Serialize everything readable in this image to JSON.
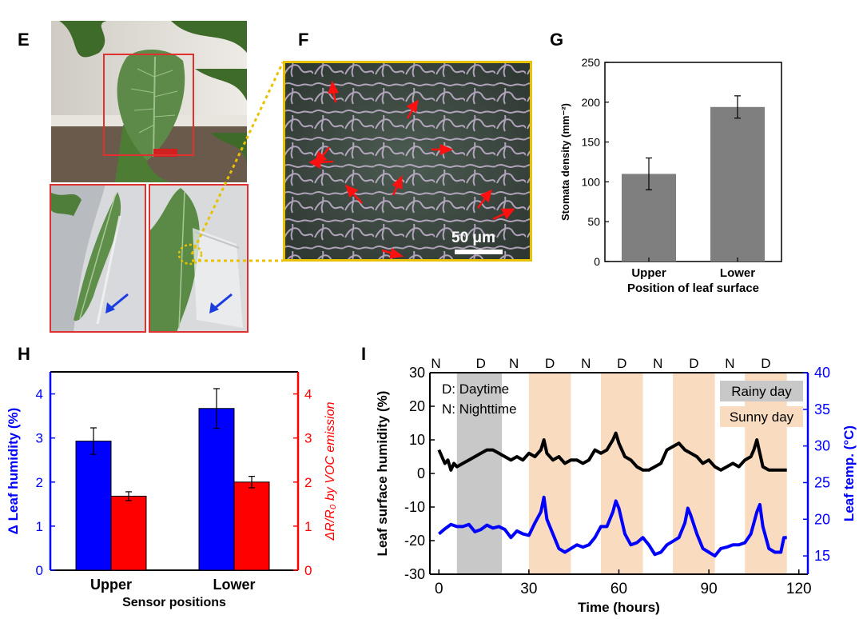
{
  "panels": {
    "E": "E",
    "F": "F",
    "G": "G",
    "H": "H",
    "I": "I"
  },
  "colors": {
    "gray_bar": "#7f7f7f",
    "blue": "#0000ff",
    "red": "#ff0000",
    "black": "#000000",
    "rainy": "#c8c8c8",
    "sunny": "#f9dcc0",
    "frame_red": "#e03030",
    "frame_yellow": "#e8c200",
    "arrow_red": "#ff1010",
    "arrow_blue": "#1b3de0"
  },
  "micrograph": {
    "scale_bar_label": "50 μm"
  },
  "chart_data": [
    {
      "id": "G",
      "type": "bar",
      "categories": [
        "Upper",
        "Lower"
      ],
      "values": [
        110,
        194
      ],
      "errors": [
        20,
        14
      ],
      "ylabel": "Stomata density (mm⁻²)",
      "xlabel": "Position of leaf surface",
      "ylim": [
        0,
        250
      ],
      "yticks": [
        "0",
        "50",
        "100",
        "150",
        "200",
        "250"
      ]
    },
    {
      "id": "H",
      "type": "bar",
      "categories": [
        "Upper",
        "Lower"
      ],
      "series": [
        {
          "name": "Δ Leaf humidity (%)",
          "axis": "left",
          "values": [
            2.93,
            3.67
          ],
          "errors": [
            0.3,
            0.45
          ]
        },
        {
          "name": "ΔR/R0 by VOC emission",
          "axis": "right",
          "values": [
            1.68,
            2.0
          ],
          "errors": [
            0.1,
            0.13
          ]
        }
      ],
      "xlabel": "Sensor positions",
      "ylabel_left": "Δ Leaf humidity (%)",
      "ylabel_right": "ΔR/R₀ by VOC emission",
      "ylim": [
        0,
        4.5
      ],
      "yticks_left": [
        "0",
        "1",
        "2",
        "3",
        "4"
      ],
      "yticks_right": [
        "0",
        "1",
        "2",
        "3",
        "4"
      ]
    },
    {
      "id": "I",
      "type": "line",
      "xlabel": "Time (hours)",
      "ylabel_left": "Leaf surface humidity (%)",
      "ylabel_right": "Leaf temp. (°C)",
      "xlim": [
        -3,
        123
      ],
      "ylim_left": [
        -30,
        30
      ],
      "ylim_right": [
        12.5,
        40
      ],
      "xticks": [
        "0",
        "30",
        "60",
        "90",
        "120"
      ],
      "yticks_left": [
        "-30",
        "-20",
        "-10",
        "0",
        "10",
        "20",
        "30"
      ],
      "yticks_right": [
        "15",
        "20",
        "25",
        "30",
        "35",
        "40"
      ],
      "legend": {
        "daytime": "D: Daytime",
        "nighttime": "N: Nighttime",
        "rainy": "Rainy day",
        "sunny": "Sunny day"
      },
      "day_night_labels": [
        "N",
        "D",
        "N",
        "D",
        "N",
        "D",
        "N",
        "D",
        "N",
        "D"
      ],
      "shaded_regions": [
        {
          "kind": "rainy",
          "x0": 6,
          "x1": 21
        },
        {
          "kind": "sunny",
          "x0": 30,
          "x1": 44
        },
        {
          "kind": "sunny",
          "x0": 54,
          "x1": 68
        },
        {
          "kind": "sunny",
          "x0": 78,
          "x1": 92
        },
        {
          "kind": "sunny",
          "x0": 102,
          "x1": 116
        }
      ],
      "series": [
        {
          "name": "Leaf surface humidity",
          "axis": "left",
          "x": [
            0,
            1,
            2,
            3,
            4,
            5,
            6,
            8,
            10,
            12,
            14,
            16,
            18,
            20,
            22,
            24,
            26,
            28,
            30,
            32,
            34,
            35,
            36,
            38,
            40,
            42,
            44,
            46,
            48,
            50,
            52,
            54,
            56,
            58,
            59,
            60,
            62,
            64,
            66,
            68,
            70,
            72,
            74,
            76,
            78,
            80,
            82,
            84,
            86,
            88,
            90,
            92,
            94,
            96,
            98,
            100,
            102,
            104,
            105,
            106,
            107,
            108,
            110,
            112,
            114,
            116
          ],
          "y": [
            7,
            5,
            3,
            4,
            1,
            3,
            2,
            3,
            4,
            5,
            6,
            7,
            7,
            6,
            5,
            4,
            5,
            4,
            6,
            5,
            7,
            10,
            6,
            4,
            5,
            3,
            4,
            4,
            3,
            4,
            7,
            6,
            7,
            10,
            12,
            9,
            5,
            4,
            2,
            1,
            1,
            2,
            3,
            7,
            8,
            9,
            7,
            6,
            5,
            3,
            4,
            2,
            1,
            2,
            3,
            2,
            4,
            5,
            7,
            10,
            6,
            2,
            1,
            1,
            1,
            1
          ]
        },
        {
          "name": "Leaf temperature",
          "axis": "right",
          "x": [
            0,
            2,
            4,
            6,
            8,
            10,
            12,
            14,
            16,
            18,
            20,
            22,
            24,
            26,
            28,
            30,
            32,
            34,
            35,
            36,
            38,
            40,
            42,
            44,
            46,
            48,
            50,
            52,
            54,
            56,
            58,
            59,
            60,
            62,
            64,
            66,
            68,
            70,
            72,
            74,
            76,
            78,
            80,
            82,
            83,
            84,
            86,
            88,
            90,
            92,
            94,
            96,
            98,
            100,
            102,
            104,
            106,
            107,
            108,
            110,
            112,
            114,
            115,
            116
          ],
          "y": [
            18,
            18.7,
            19.3,
            19,
            19,
            19.3,
            18.3,
            18.6,
            19.2,
            18.8,
            19,
            18.6,
            17.5,
            18.4,
            18,
            17.8,
            19.5,
            21,
            23,
            20,
            18,
            16,
            15.5,
            16,
            16.5,
            16.2,
            16.5,
            17.5,
            19,
            19,
            21,
            22.5,
            21.5,
            18,
            16.5,
            16.8,
            17.5,
            16.5,
            15.2,
            15.5,
            16.5,
            17,
            17.5,
            19.5,
            21.5,
            20.5,
            18,
            16,
            15.5,
            15,
            16,
            16.2,
            16.5,
            16.5,
            16.8,
            18,
            21,
            22,
            19,
            16,
            15.5,
            15.5,
            17.5,
            17.5
          ]
        }
      ]
    }
  ]
}
